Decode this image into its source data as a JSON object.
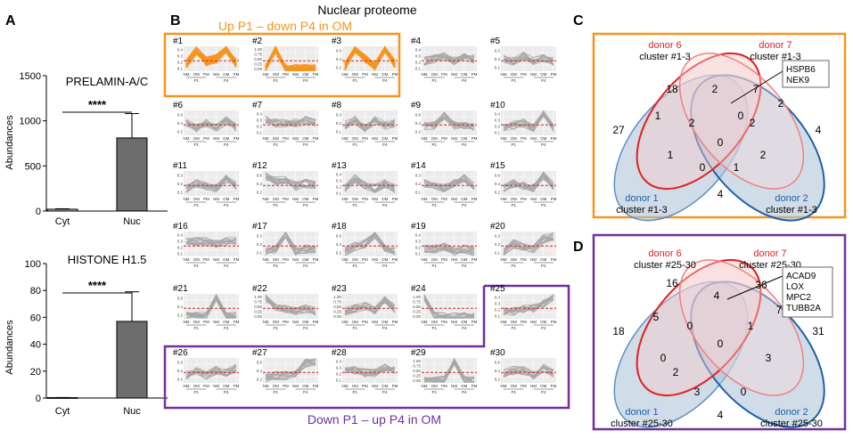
{
  "panel_labels": {
    "a": "A",
    "b": "B",
    "c": "C",
    "d": "D"
  },
  "panel_b": {
    "title": "Nuclear proteome",
    "top_group_label": "Up P1 – down P4 in OM",
    "bottom_group_label": "Down P1 – up P4 in OM",
    "x_ticks": [
      "NM",
      "OM",
      "PM",
      "NM",
      "OM",
      "PM"
    ],
    "x_groups": [
      "P1",
      "P4"
    ],
    "y_ticks": [
      "0.00",
      "0.25",
      "0.50",
      "0.75",
      "1.00"
    ],
    "y_ticks_short": [
      "0.1",
      "0.2",
      "0.3",
      "0.4"
    ],
    "y_ticks_mid": [
      "0.1",
      "0.2",
      "0.3"
    ],
    "y_ticks_large": [
      "0.2",
      "0.4",
      "0.6"
    ],
    "y_ticks_wide": [
      "0.25",
      "0.50",
      "0.75"
    ],
    "colors": {
      "highlight": "#f7941d",
      "normal": "#a6a6a6",
      "mean": "#e02020",
      "top_box": "#f7941d",
      "bottom_box": "#7030a0"
    }
  },
  "panel_c": {
    "sets": [
      {
        "name": "donor 6",
        "cluster": "cluster #1-3"
      },
      {
        "name": "donor 7",
        "cluster": "cluster #1-3"
      },
      {
        "name": "donor 1",
        "cluster": "cluster #1-3"
      },
      {
        "name": "donor 2",
        "cluster": "cluster #1-3"
      }
    ],
    "counts": [
      "18",
      "2",
      "7",
      "27",
      "1",
      "2",
      "2",
      "4",
      "2",
      "0",
      "0",
      "1",
      "1",
      "2",
      "0",
      "4"
    ],
    "callout": [
      "HSPB6",
      "NEK9"
    ]
  },
  "panel_d": {
    "sets": [
      {
        "name": "donor 6",
        "cluster": "cluster #25-30"
      },
      {
        "name": "donor 7",
        "cluster": "cluster #25-30"
      },
      {
        "name": "donor 1",
        "cluster": "cluster #25-30"
      },
      {
        "name": "donor 2",
        "cluster": "cluster #25-30"
      }
    ],
    "counts": [
      "16",
      "4",
      "36",
      "18",
      "5",
      "0",
      "1",
      "7",
      "31",
      "0",
      "0",
      "2",
      "3",
      "3",
      "0",
      "4"
    ],
    "callout": [
      "ACAD9",
      "LOX",
      "MPC2",
      "TUBB2A"
    ]
  },
  "chart_data": [
    {
      "type": "bar",
      "title": "PRELAMIN-A/C",
      "categories": [
        "Cyt",
        "Nuc"
      ],
      "values": [
        20,
        810
      ],
      "errors": [
        5,
        270
      ],
      "ylabel": "Abundances",
      "ylim": [
        0,
        1500
      ],
      "yticks": [
        "0",
        "500",
        "1000",
        "1500"
      ],
      "significance": "****"
    },
    {
      "type": "bar",
      "title": "HISTONE H1.5",
      "categories": [
        "Cyt",
        "Nuc"
      ],
      "values": [
        0.3,
        57
      ],
      "errors": [
        0.1,
        22
      ],
      "ylabel": "Abundances",
      "ylim": [
        0,
        100
      ],
      "yticks": [
        "0",
        "20",
        "40",
        "60",
        "80",
        "100"
      ],
      "significance": "****"
    },
    {
      "type": "line",
      "title": "Nuclear proteome",
      "clusters": [
        "#1",
        "#2",
        "#3",
        "#4",
        "#5",
        "#6",
        "#7",
        "#8",
        "#9",
        "#10",
        "#11",
        "#12",
        "#13",
        "#14",
        "#15",
        "#16",
        "#17",
        "#18",
        "#19",
        "#20",
        "#21",
        "#22",
        "#23",
        "#24",
        "#25",
        "#26",
        "#27",
        "#28",
        "#29",
        "#30"
      ],
      "x": [
        "NM",
        "OM",
        "PM",
        "NM",
        "OM",
        "PM"
      ],
      "groups": [
        "P1",
        "P4"
      ],
      "highlighted_clusters": [
        "#1",
        "#2",
        "#3"
      ],
      "boxed_bottom_clusters": [
        "#25",
        "#26",
        "#27",
        "#28",
        "#29",
        "#30"
      ]
    }
  ]
}
